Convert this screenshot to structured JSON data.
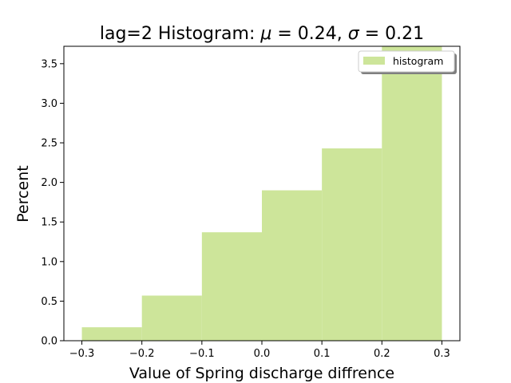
{
  "chart_data": {
    "type": "bar",
    "title": "lag=2 Histogram: μ = 0.24, σ = 0.21",
    "title_parts": {
      "prefix": "lag=2 Histogram: ",
      "mu_symbol": "μ",
      "mu_value": " = 0.24, ",
      "sigma_symbol": "σ",
      "sigma_value": " = 0.21"
    },
    "xlabel": "Value of Spring discharge diffrence",
    "ylabel": "Percent",
    "xlim": [
      -0.33,
      0.33
    ],
    "ylim": [
      0,
      3.72
    ],
    "x_ticks": [
      {
        "value": -0.3,
        "label": "−0.3"
      },
      {
        "value": -0.2,
        "label": "−0.2"
      },
      {
        "value": -0.1,
        "label": "−0.1"
      },
      {
        "value": 0.0,
        "label": "0.0"
      },
      {
        "value": 0.1,
        "label": "0.1"
      },
      {
        "value": 0.2,
        "label": "0.2"
      },
      {
        "value": 0.3,
        "label": "0.3"
      }
    ],
    "y_ticks": [
      {
        "value": 0.0,
        "label": "0.0"
      },
      {
        "value": 0.5,
        "label": "0.5"
      },
      {
        "value": 1.0,
        "label": "1.0"
      },
      {
        "value": 1.5,
        "label": "1.5"
      },
      {
        "value": 2.0,
        "label": "2.0"
      },
      {
        "value": 2.5,
        "label": "2.5"
      },
      {
        "value": 3.0,
        "label": "3.0"
      },
      {
        "value": 3.5,
        "label": "3.5"
      }
    ],
    "bins": [
      {
        "x0": -0.3,
        "x1": -0.2,
        "value": 0.17
      },
      {
        "x0": -0.2,
        "x1": -0.1,
        "value": 0.57
      },
      {
        "x0": -0.1,
        "x1": 0.0,
        "value": 1.37
      },
      {
        "x0": 0.0,
        "x1": 0.1,
        "value": 1.9
      },
      {
        "x0": 0.1,
        "x1": 0.2,
        "value": 2.43
      },
      {
        "x0": 0.2,
        "x1": 0.3,
        "value": 3.85
      }
    ],
    "series": [
      {
        "name": "histogram",
        "color": "#cde59a"
      }
    ],
    "legend": {
      "position": "top-right"
    },
    "grid": false
  }
}
